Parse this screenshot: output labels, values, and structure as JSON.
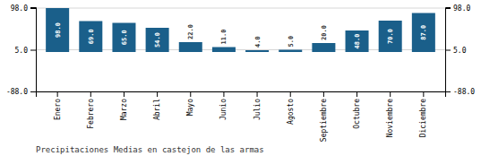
{
  "chart_data": {
    "type": "bar",
    "title": "Precipitaciones Medias en castejon de las armas",
    "categories": [
      "Enero",
      "Febrero",
      "Marzo",
      "Abril",
      "Mayo",
      "Junio",
      "Julio",
      "Agosto",
      "Septiembre",
      "Octubre",
      "Noviembre",
      "Diciembre"
    ],
    "values": [
      98.0,
      69.0,
      65.0,
      54.0,
      22.0,
      11.0,
      4.0,
      5.0,
      20.0,
      48.0,
      70.0,
      87.0
    ],
    "value_labels": [
      "98.0",
      "69.0",
      "65.0",
      "54.0",
      "22.0",
      "11.0",
      "4.0",
      "5.0",
      "20.0",
      "48.0",
      "70.0",
      "87.0"
    ],
    "data_labels": true,
    "color": "#1a5f8a",
    "ylim": [
      -88.0,
      100.0
    ],
    "yticks": [
      {
        "value": -88.0,
        "label": "-88.0"
      },
      {
        "value": 5.0,
        "label": "5.0"
      },
      {
        "value": 98.0,
        "label": "98.0"
      }
    ],
    "y2lim": [
      -88.0,
      100.0
    ],
    "y2ticks": [
      {
        "value": -88.0,
        "label": "-88.0"
      },
      {
        "value": 5.0,
        "label": "5.0"
      },
      {
        "value": 98.0,
        "label": "98.0"
      }
    ],
    "grid": true
  }
}
